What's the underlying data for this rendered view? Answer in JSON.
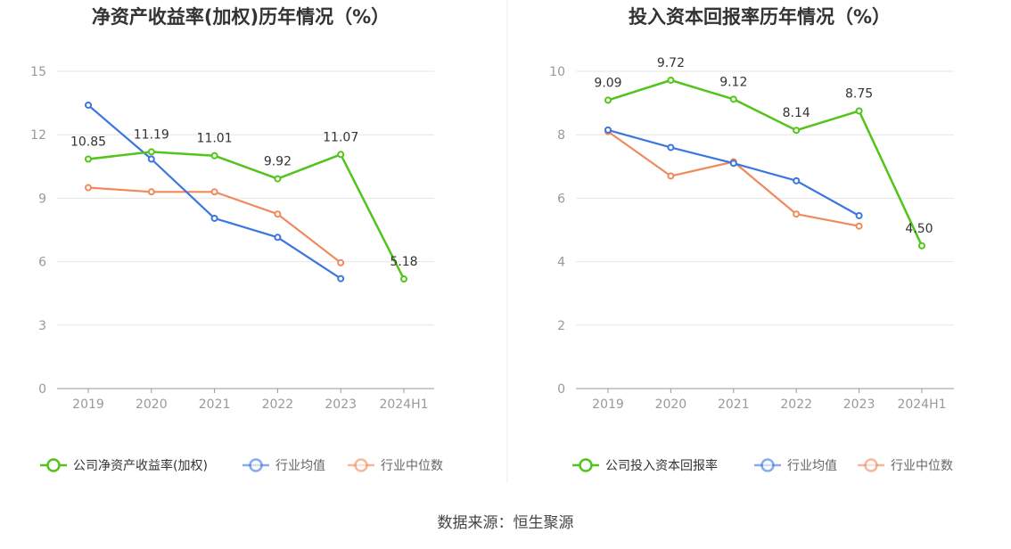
{
  "source_label": "数据来源：恒生聚源",
  "colors": {
    "company": "#52c41a",
    "industry_avg": "#3a75e0",
    "industry_median": "#f08a5d",
    "grid": "#e6e6e6",
    "axis": "#999999"
  },
  "chart_data": [
    {
      "type": "line",
      "title": "净资产收益率(加权)历年情况（%）",
      "categories": [
        "2019",
        "2020",
        "2021",
        "2022",
        "2023",
        "2024H1"
      ],
      "ylim": [
        0,
        15
      ],
      "yticks": [
        0,
        3,
        6,
        9,
        12,
        15
      ],
      "grid": true,
      "legend_position": "bottom",
      "series": [
        {
          "key": "company",
          "name": "公司净资产收益率(加权)",
          "values": [
            10.85,
            11.19,
            11.01,
            9.92,
            11.07,
            5.18
          ],
          "labels": [
            "10.85",
            "11.19",
            "11.01",
            "9.92",
            "11.07",
            "5.18"
          ]
        },
        {
          "key": "industry_avg",
          "name": "行业均值",
          "values": [
            13.4,
            10.85,
            8.05,
            7.15,
            5.2,
            null
          ]
        },
        {
          "key": "industry_median",
          "name": "行业中位数",
          "values": [
            9.5,
            9.3,
            9.3,
            8.25,
            5.95,
            null
          ]
        }
      ]
    },
    {
      "type": "line",
      "title": "投入资本回报率历年情况（%）",
      "categories": [
        "2019",
        "2020",
        "2021",
        "2022",
        "2023",
        "2024H1"
      ],
      "ylim": [
        0,
        10
      ],
      "yticks": [
        0,
        2,
        4,
        6,
        8,
        10
      ],
      "grid": true,
      "legend_position": "bottom",
      "series": [
        {
          "key": "company",
          "name": "公司投入资本回报率",
          "values": [
            9.09,
            9.72,
            9.12,
            8.14,
            8.75,
            4.5
          ],
          "labels": [
            "9.09",
            "9.72",
            "9.12",
            "8.14",
            "8.75",
            "4.50"
          ]
        },
        {
          "key": "industry_avg",
          "name": "行业均值",
          "values": [
            8.15,
            7.6,
            7.1,
            6.55,
            5.45,
            null
          ]
        },
        {
          "key": "industry_median",
          "name": "行业中位数",
          "values": [
            8.1,
            6.7,
            7.15,
            5.5,
            5.12,
            null
          ]
        }
      ]
    }
  ]
}
